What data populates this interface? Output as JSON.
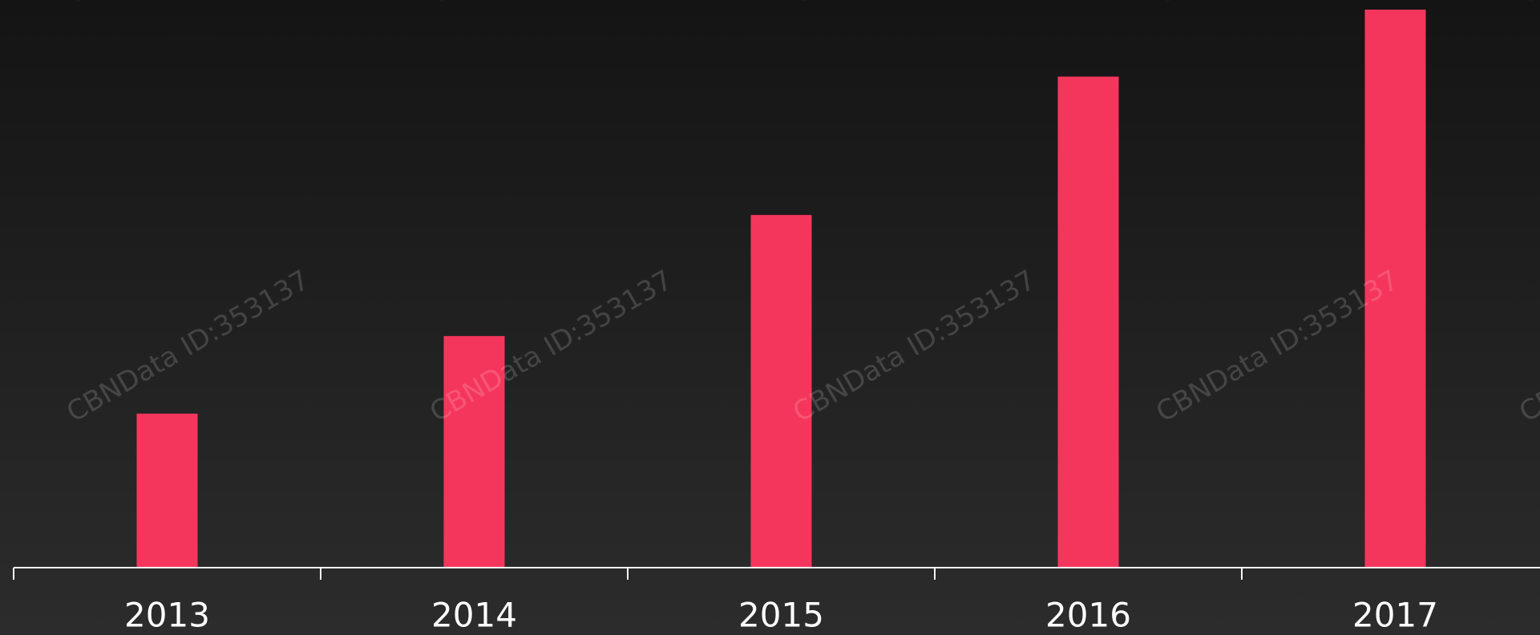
{
  "chart_data": {
    "type": "bar",
    "categories": [
      "2013",
      "2014",
      "2015",
      "2016",
      "2017"
    ],
    "values": [
      27.6,
      41.5,
      63.2,
      88,
      100
    ],
    "color": "#f5365c",
    "ylim": [
      0,
      100
    ],
    "watermark": "CBNData ID:353137"
  }
}
